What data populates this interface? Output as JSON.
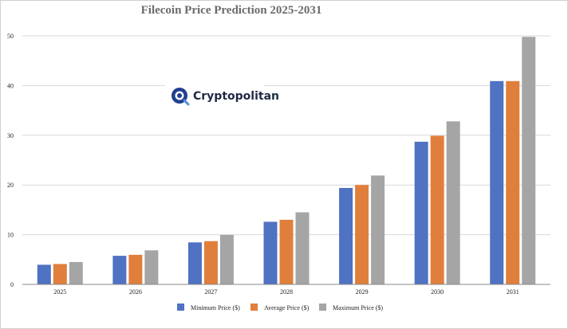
{
  "chart_data": {
    "type": "bar",
    "title": "Filecoin Price Prediction 2025-2031",
    "xlabel": "",
    "ylabel": "",
    "ylim": [
      0,
      50
    ],
    "yticks": [
      0,
      10,
      20,
      30,
      40,
      50
    ],
    "grid": true,
    "legend_position": "bottom",
    "categories": [
      "2025",
      "2026",
      "2027",
      "2028",
      "2029",
      "2030",
      "2031"
    ],
    "series": [
      {
        "name": "Minimum Price ($)",
        "color": "#4f72c2",
        "values": [
          3.95,
          5.75,
          8.45,
          12.6,
          19.4,
          28.7,
          40.9
        ]
      },
      {
        "name": "Average Price ($)",
        "color": "#e07f3c",
        "values": [
          4.1,
          5.95,
          8.7,
          13.0,
          20.0,
          29.9,
          40.9
        ]
      },
      {
        "name": "Maximum Price ($)",
        "color": "#a5a5a5",
        "values": [
          4.5,
          6.85,
          9.95,
          14.5,
          21.9,
          32.8,
          49.8
        ]
      }
    ]
  },
  "watermark": {
    "text": "Cryptopolitan",
    "icon": "cryptopolitan-logo-icon"
  }
}
